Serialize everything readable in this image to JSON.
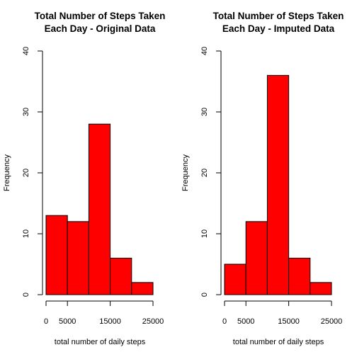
{
  "colors": {
    "bar_fill": "#ff0000",
    "bar_stroke": "#000000"
  },
  "chart_data": [
    {
      "type": "bar",
      "title_line1": "Total Number of Steps Taken",
      "title_line2": "Each Day - Original Data",
      "xlabel": "total number of daily steps",
      "ylabel": "Frequency",
      "bins": [
        [
          0,
          5000
        ],
        [
          5000,
          10000
        ],
        [
          10000,
          15000
        ],
        [
          15000,
          20000
        ],
        [
          20000,
          25000
        ]
      ],
      "values": [
        13,
        12,
        28,
        6,
        2
      ],
      "xlim": [
        0,
        25000
      ],
      "ylim": [
        0,
        40
      ],
      "xticks": [
        0,
        5000,
        15000,
        25000
      ],
      "xtick_labels": [
        "0",
        "5000",
        "15000",
        "25000"
      ],
      "yticks": [
        0,
        10,
        20,
        30,
        40
      ],
      "ytick_labels": [
        "0",
        "10",
        "20",
        "30",
        "40"
      ],
      "grid": false
    },
    {
      "type": "bar",
      "title_line1": "Total Number of Steps Taken",
      "title_line2": "Each Day - Imputed Data",
      "xlabel": "total number of daily steps",
      "ylabel": "Frequency",
      "bins": [
        [
          0,
          5000
        ],
        [
          5000,
          10000
        ],
        [
          10000,
          15000
        ],
        [
          15000,
          20000
        ],
        [
          20000,
          25000
        ]
      ],
      "values": [
        5,
        12,
        36,
        6,
        2
      ],
      "xlim": [
        0,
        25000
      ],
      "ylim": [
        0,
        40
      ],
      "xticks": [
        0,
        5000,
        15000,
        25000
      ],
      "xtick_labels": [
        "0",
        "5000",
        "15000",
        "25000"
      ],
      "yticks": [
        0,
        10,
        20,
        30,
        40
      ],
      "ytick_labels": [
        "0",
        "10",
        "20",
        "30",
        "40"
      ],
      "grid": false
    }
  ]
}
